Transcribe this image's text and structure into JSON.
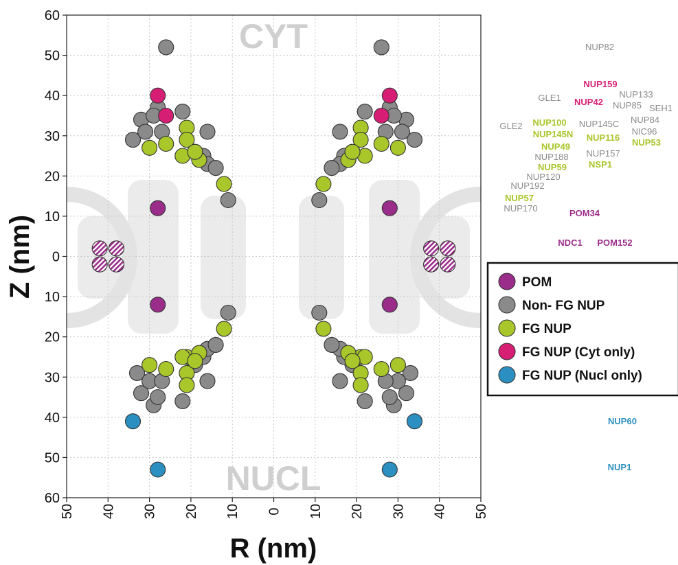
{
  "chart_data": {
    "type": "scatter",
    "xlabel": "R (nm)",
    "ylabel": "Z (nm)",
    "xlim": [
      -50,
      50
    ],
    "ylim": [
      -60,
      60
    ],
    "x_ticks": [
      "50",
      "40",
      "30",
      "20",
      "10",
      "0",
      "10",
      "20",
      "30",
      "40",
      "50"
    ],
    "y_ticks": [
      "60",
      "50",
      "40",
      "30",
      "20",
      "10",
      "0",
      "10",
      "20",
      "30",
      "40",
      "50",
      "60"
    ],
    "grid": true,
    "region_labels": {
      "cyt": "CYT",
      "nucl": "NUCL"
    },
    "legend": {
      "placement": "right",
      "items": [
        {
          "label": "POM",
          "color": "#9b2d8a"
        },
        {
          "label": "Non- FG NUP",
          "color": "#8a8a8a"
        },
        {
          "label": "FG NUP",
          "color": "#a9c62a"
        },
        {
          "label": "FG NUP (Cyt only)",
          "color": "#d61f74"
        },
        {
          "label": "FG NUP (Nucl only)",
          "color": "#2b8fc1"
        }
      ]
    },
    "series": [
      {
        "name": "POM",
        "color": "#9b2d8a",
        "points": [
          [
            28,
            12
          ],
          [
            -28,
            12
          ],
          [
            28,
            -12
          ],
          [
            -28,
            -12
          ]
        ]
      },
      {
        "name": "POM",
        "color": "#9b2d8a",
        "hatched": true,
        "points": [
          [
            38,
            2
          ],
          [
            42,
            2
          ],
          [
            38,
            -2
          ],
          [
            42,
            -2
          ],
          [
            -38,
            2
          ],
          [
            -42,
            2
          ],
          [
            -38,
            -2
          ],
          [
            -42,
            -2
          ]
        ]
      },
      {
        "name": "Non- FG NUP",
        "color": "#8a8a8a",
        "points": [
          [
            26,
            52
          ],
          [
            28,
            37
          ],
          [
            32,
            34
          ],
          [
            34,
            29
          ],
          [
            31,
            31
          ],
          [
            27,
            31
          ],
          [
            22,
            36
          ],
          [
            29,
            35
          ],
          [
            16,
            31
          ],
          [
            19,
            26
          ],
          [
            17,
            25
          ],
          [
            16,
            23
          ],
          [
            14,
            22
          ],
          [
            11,
            14
          ],
          [
            -26,
            52
          ],
          [
            -28,
            37
          ],
          [
            -32,
            34
          ],
          [
            -34,
            29
          ],
          [
            -31,
            31
          ],
          [
            -27,
            31
          ],
          [
            -22,
            36
          ],
          [
            -29,
            35
          ],
          [
            -16,
            31
          ],
          [
            -19,
            26
          ],
          [
            -17,
            25
          ],
          [
            -16,
            23
          ],
          [
            -14,
            22
          ],
          [
            -11,
            14
          ],
          [
            33,
            -29
          ],
          [
            32,
            -34
          ],
          [
            29,
            -37
          ],
          [
            28,
            -35
          ],
          [
            30,
            -31
          ],
          [
            27,
            -31
          ],
          [
            22,
            -36
          ],
          [
            16,
            -31
          ],
          [
            19,
            -27
          ],
          [
            17,
            -25
          ],
          [
            16,
            -23
          ],
          [
            14,
            -22
          ],
          [
            11,
            -14
          ],
          [
            -33,
            -29
          ],
          [
            -32,
            -34
          ],
          [
            -29,
            -37
          ],
          [
            -28,
            -35
          ],
          [
            -30,
            -31
          ],
          [
            -27,
            -31
          ],
          [
            -22,
            -36
          ],
          [
            -16,
            -31
          ],
          [
            -19,
            -27
          ],
          [
            -17,
            -25
          ],
          [
            -16,
            -23
          ],
          [
            -14,
            -22
          ],
          [
            -11,
            -14
          ]
        ]
      },
      {
        "name": "FG NUP",
        "color": "#a9c62a",
        "points": [
          [
            30,
            27
          ],
          [
            26,
            28
          ],
          [
            21,
            32
          ],
          [
            21,
            29
          ],
          [
            22,
            25
          ],
          [
            18,
            24
          ],
          [
            19,
            26
          ],
          [
            12,
            18
          ],
          [
            -30,
            27
          ],
          [
            -26,
            28
          ],
          [
            -21,
            32
          ],
          [
            -21,
            29
          ],
          [
            -22,
            25
          ],
          [
            -18,
            24
          ],
          [
            -19,
            26
          ],
          [
            -12,
            18
          ],
          [
            30,
            -27
          ],
          [
            26,
            -28
          ],
          [
            21,
            -25
          ],
          [
            22,
            -25
          ],
          [
            21,
            -29
          ],
          [
            21,
            -32
          ],
          [
            18,
            -24
          ],
          [
            19,
            -26
          ],
          [
            12,
            -18
          ],
          [
            -30,
            -27
          ],
          [
            -26,
            -28
          ],
          [
            -21,
            -25
          ],
          [
            -22,
            -25
          ],
          [
            -21,
            -29
          ],
          [
            -21,
            -32
          ],
          [
            -18,
            -24
          ],
          [
            -19,
            -26
          ],
          [
            -12,
            -18
          ]
        ]
      },
      {
        "name": "FG NUP (Cyt only)",
        "color": "#d61f74",
        "points": [
          [
            28,
            40
          ],
          [
            26,
            35
          ],
          [
            -28,
            40
          ],
          [
            -26,
            35
          ]
        ]
      },
      {
        "name": "FG NUP (Nucl only)",
        "color": "#2b8fc1",
        "points": [
          [
            34,
            -41
          ],
          [
            28,
            -53
          ],
          [
            -34,
            -41
          ],
          [
            -28,
            -53
          ]
        ]
      }
    ]
  },
  "nup_labels": [
    {
      "text": "NUP82",
      "color": "#8a8a8a"
    },
    {
      "text": "NUP159",
      "color": "#d61f74"
    },
    {
      "text": "NUP133",
      "color": "#8a8a8a"
    },
    {
      "text": "GLE1",
      "color": "#8a8a8a"
    },
    {
      "text": "NUP42",
      "color": "#d61f74"
    },
    {
      "text": "NUP85",
      "color": "#8a8a8a"
    },
    {
      "text": "SEH1",
      "color": "#8a8a8a"
    },
    {
      "text": "NUP84",
      "color": "#8a8a8a"
    },
    {
      "text": "GLE2",
      "color": "#8a8a8a"
    },
    {
      "text": "NUP100",
      "color": "#a9c62a"
    },
    {
      "text": "NUP145C",
      "color": "#8a8a8a"
    },
    {
      "text": "NIC96",
      "color": "#8a8a8a"
    },
    {
      "text": "NUP145N",
      "color": "#a9c62a"
    },
    {
      "text": "NUP116",
      "color": "#a9c62a"
    },
    {
      "text": "NUP53",
      "color": "#a9c62a"
    },
    {
      "text": "NUP49",
      "color": "#a9c62a"
    },
    {
      "text": "NUP188",
      "color": "#8a8a8a"
    },
    {
      "text": "NUP157",
      "color": "#8a8a8a"
    },
    {
      "text": "NUP59",
      "color": "#a9c62a"
    },
    {
      "text": "NSP1",
      "color": "#a9c62a"
    },
    {
      "text": "NUP120",
      "color": "#8a8a8a"
    },
    {
      "text": "NUP192",
      "color": "#8a8a8a"
    },
    {
      "text": "NUP57",
      "color": "#a9c62a"
    },
    {
      "text": "NUP170",
      "color": "#8a8a8a"
    },
    {
      "text": "POM34",
      "color": "#9b2d8a"
    },
    {
      "text": "NDC1",
      "color": "#9b2d8a"
    },
    {
      "text": "POM152",
      "color": "#9b2d8a"
    },
    {
      "text": "NUP60",
      "color": "#2b8fc1"
    },
    {
      "text": "NUP1",
      "color": "#2b8fc1"
    }
  ]
}
